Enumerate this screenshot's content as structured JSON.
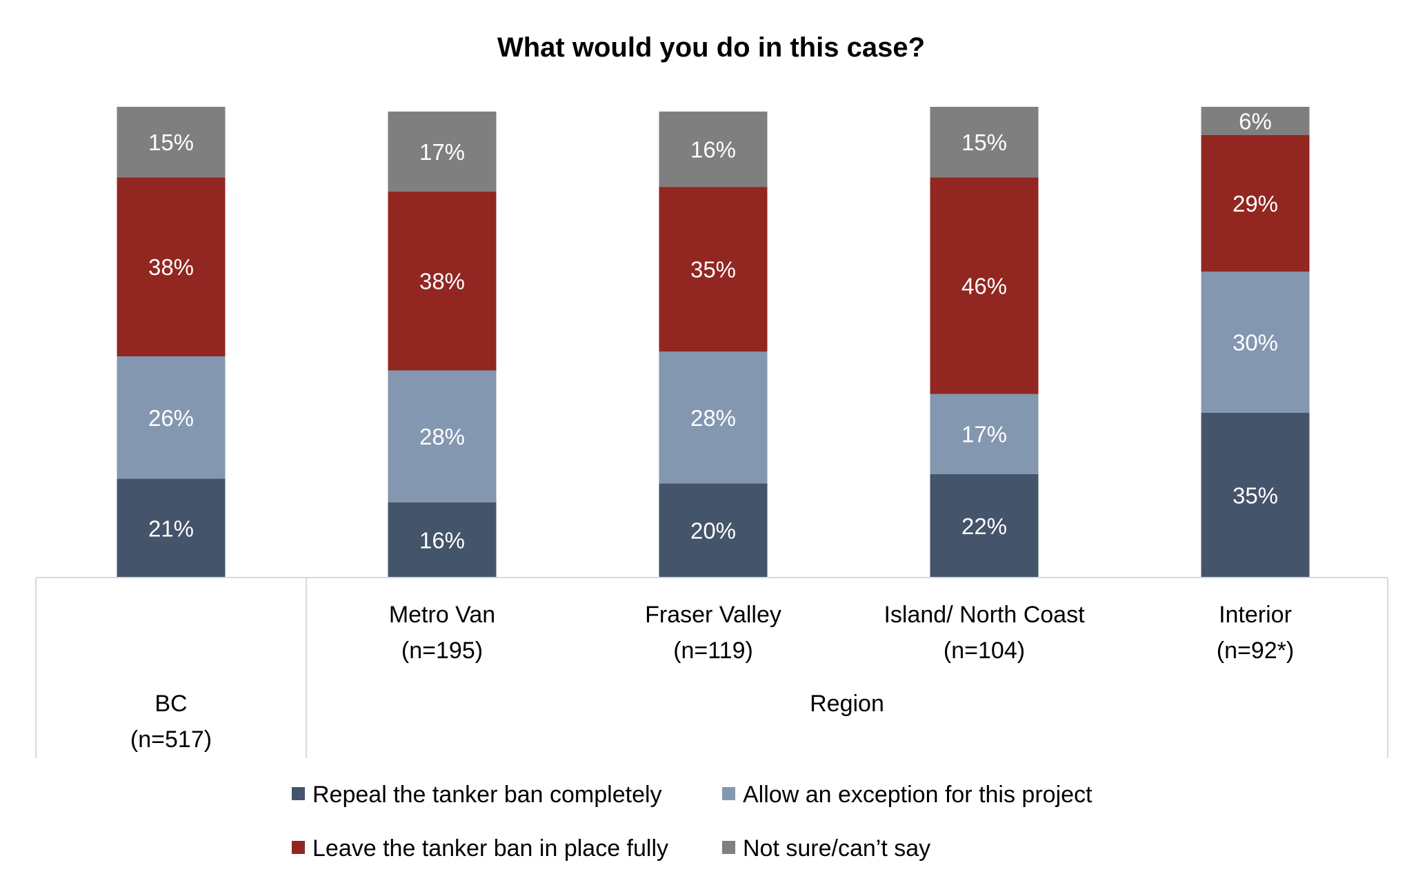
{
  "chart_data": {
    "type": "stacked-bar",
    "title": "What would you do in this case?",
    "ylim": [
      0,
      100
    ],
    "grid": false,
    "legend_position": "bottom",
    "categories": [
      {
        "label": "BC",
        "n": "(n=517)"
      },
      {
        "label": "Metro Van",
        "n": "(n=195)"
      },
      {
        "label": "Fraser Valley",
        "n": "(n=119)"
      },
      {
        "label": "Island/ North Coast",
        "n": "(n=104)"
      },
      {
        "label": "Interior",
        "n": "(n=92*)"
      }
    ],
    "group_label": "Region",
    "series": [
      {
        "name": "Repeal the tanker ban completely",
        "color": "#44546a",
        "values": [
          21,
          16,
          20,
          22,
          35
        ]
      },
      {
        "name": "Allow an exception for this project",
        "color": "#8497b0",
        "values": [
          26,
          28,
          28,
          17,
          30
        ]
      },
      {
        "name": "Leave the tanker ban in place fully",
        "color": "#922621",
        "values": [
          38,
          38,
          35,
          46,
          29
        ]
      },
      {
        "name": "Not sure/can’t say",
        "color": "#7f7f7f",
        "values": [
          15,
          17,
          16,
          15,
          6
        ]
      }
    ]
  }
}
